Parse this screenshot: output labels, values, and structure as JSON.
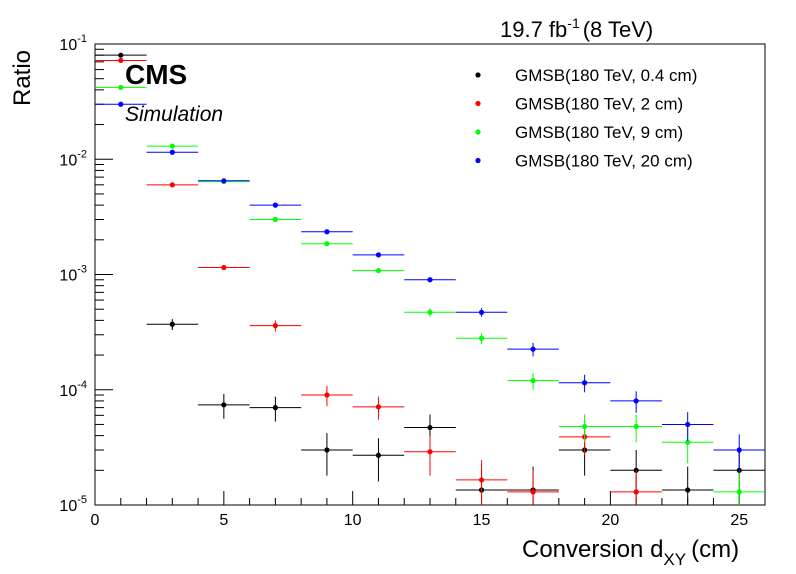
{
  "chart_data": {
    "type": "scatter",
    "lumi": {
      "value": "19.7 fb",
      "exp": "-1",
      "energy": "(8 TeV)"
    },
    "experiment": "CMS",
    "subtitle": "Simulation",
    "xlabel": {
      "main": "Conversion d",
      "sub": "XY",
      "unit": "(cm)"
    },
    "ylabel": "Ratio",
    "xlim": [
      0,
      26
    ],
    "ylim": [
      1e-05,
      0.1
    ],
    "yscale": "log",
    "x_ticks": [
      "0",
      "5",
      "10",
      "15",
      "20",
      "25"
    ],
    "y_ticks": [
      {
        "base": "10",
        "exp": "-5"
      },
      {
        "base": "10",
        "exp": "-4"
      },
      {
        "base": "10",
        "exp": "-3"
      },
      {
        "base": "10",
        "exp": "-2"
      },
      {
        "base": "10",
        "exp": "-1"
      }
    ],
    "legend_position": "top-right",
    "series": [
      {
        "name": "GMSB(180 TeV, 0.4 cm)",
        "color": "#000000",
        "points": [
          {
            "x": 1,
            "y": 0.08,
            "err": 0
          },
          {
            "x": 3,
            "y": 0.00037,
            "err": 4e-05
          },
          {
            "x": 5,
            "y": 7.4e-05,
            "err": 1.8e-05
          },
          {
            "x": 7,
            "y": 7e-05,
            "err": 1.7e-05
          },
          {
            "x": 9,
            "y": 3e-05,
            "err": 1.2e-05
          },
          {
            "x": 11,
            "y": 2.7e-05,
            "err": 1.1e-05
          },
          {
            "x": 13,
            "y": 4.7e-05,
            "err": 1.4e-05
          },
          {
            "x": 15,
            "y": 1.35e-05,
            "err": 8e-06
          },
          {
            "x": 17,
            "y": 1.35e-05,
            "err": 8e-06
          },
          {
            "x": 19,
            "y": 3e-05,
            "err": 1.2e-05
          },
          {
            "x": 21,
            "y": 2e-05,
            "err": 1e-05
          },
          {
            "x": 23,
            "y": 1.35e-05,
            "err": 8e-06
          },
          {
            "x": 25,
            "y": 2e-05,
            "err": 1e-05
          }
        ]
      },
      {
        "name": "GMSB(180 TeV, 2 cm)",
        "color": "#ff0000",
        "points": [
          {
            "x": 1,
            "y": 0.072,
            "err": 0
          },
          {
            "x": 3,
            "y": 0.006,
            "err": 0
          },
          {
            "x": 5,
            "y": 0.00115,
            "err": 0
          },
          {
            "x": 7,
            "y": 0.00036,
            "err": 4e-05
          },
          {
            "x": 9,
            "y": 9e-05,
            "err": 1.8e-05
          },
          {
            "x": 11,
            "y": 7.1e-05,
            "err": 1.6e-05
          },
          {
            "x": 13,
            "y": 2.9e-05,
            "err": 1.1e-05
          },
          {
            "x": 15,
            "y": 1.65e-05,
            "err": 8e-06
          },
          {
            "x": 17,
            "y": 1.3e-05,
            "err": 7e-06
          },
          {
            "x": 19,
            "y": 3.9e-05,
            "err": 1.2e-05
          },
          {
            "x": 21,
            "y": 1.3e-05,
            "err": 7e-06
          }
        ]
      },
      {
        "name": "GMSB(180 TeV, 9 cm)",
        "color": "#00ff00",
        "points": [
          {
            "x": 1,
            "y": 0.042,
            "err": 0
          },
          {
            "x": 3,
            "y": 0.013,
            "err": 0
          },
          {
            "x": 5,
            "y": 0.0064,
            "err": 0
          },
          {
            "x": 7,
            "y": 0.003,
            "err": 0
          },
          {
            "x": 9,
            "y": 0.00185,
            "err": 0
          },
          {
            "x": 11,
            "y": 0.00108,
            "err": 0
          },
          {
            "x": 13,
            "y": 0.00047,
            "err": 4e-05
          },
          {
            "x": 15,
            "y": 0.00028,
            "err": 3e-05
          },
          {
            "x": 17,
            "y": 0.00012,
            "err": 2e-05
          },
          {
            "x": 19,
            "y": 4.8e-05,
            "err": 1.3e-05
          },
          {
            "x": 21,
            "y": 4.8e-05,
            "err": 1.3e-05
          },
          {
            "x": 23,
            "y": 3.5e-05,
            "err": 1.2e-05
          },
          {
            "x": 25,
            "y": 1.3e-05,
            "err": 7e-06
          }
        ]
      },
      {
        "name": "GMSB(180 TeV, 20 cm)",
        "color": "#0000ff",
        "points": [
          {
            "x": 1,
            "y": 0.03,
            "err": 0
          },
          {
            "x": 3,
            "y": 0.0115,
            "err": 0
          },
          {
            "x": 5,
            "y": 0.0065,
            "err": 0
          },
          {
            "x": 7,
            "y": 0.004,
            "err": 0
          },
          {
            "x": 9,
            "y": 0.00235,
            "err": 0
          },
          {
            "x": 11,
            "y": 0.00148,
            "err": 0
          },
          {
            "x": 13,
            "y": 0.0009,
            "err": 0
          },
          {
            "x": 15,
            "y": 0.00047,
            "err": 4e-05
          },
          {
            "x": 17,
            "y": 0.000225,
            "err": 3e-05
          },
          {
            "x": 19,
            "y": 0.000115,
            "err": 2e-05
          },
          {
            "x": 21,
            "y": 8e-05,
            "err": 1.7e-05
          },
          {
            "x": 23,
            "y": 5e-05,
            "err": 1.4e-05
          },
          {
            "x": 25,
            "y": 3e-05,
            "err": 1.1e-05
          }
        ]
      }
    ]
  }
}
